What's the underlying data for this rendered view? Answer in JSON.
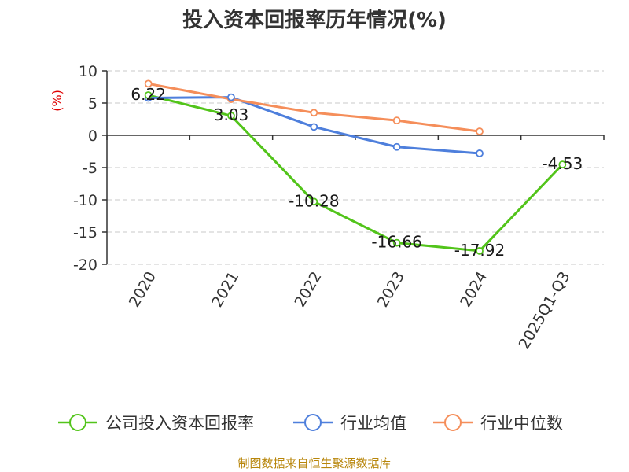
{
  "chart_data": {
    "type": "line",
    "title": "投入资本回报率历年情况(%)",
    "ylabel": "(%)",
    "xlabel": "",
    "categories": [
      "2020",
      "2021",
      "2022",
      "2023",
      "2024",
      "2025Q1-Q3"
    ],
    "ylim": [
      -20,
      10
    ],
    "yticks": [
      10,
      5,
      0,
      -5,
      -10,
      -15,
      -20
    ],
    "grid": true,
    "legend_position": "bottom",
    "series": [
      {
        "name": "公司投入资本回报率",
        "color": "#52c41a",
        "values": [
          6.22,
          3.03,
          -10.28,
          -16.66,
          -17.92,
          -4.53
        ],
        "labels": [
          "6.22",
          "3.03",
          "-10.28",
          "-16.66",
          "-17.92",
          "-4.53"
        ]
      },
      {
        "name": "行业均值",
        "color": "#4e7fdc",
        "values": [
          5.8,
          5.9,
          1.3,
          -1.8,
          -2.8,
          null
        ]
      },
      {
        "name": "行业中位数",
        "color": "#f58e5a",
        "values": [
          8.0,
          5.6,
          3.5,
          2.3,
          0.6,
          null
        ]
      }
    ]
  },
  "source": "制图数据来自恒生聚源数据库"
}
